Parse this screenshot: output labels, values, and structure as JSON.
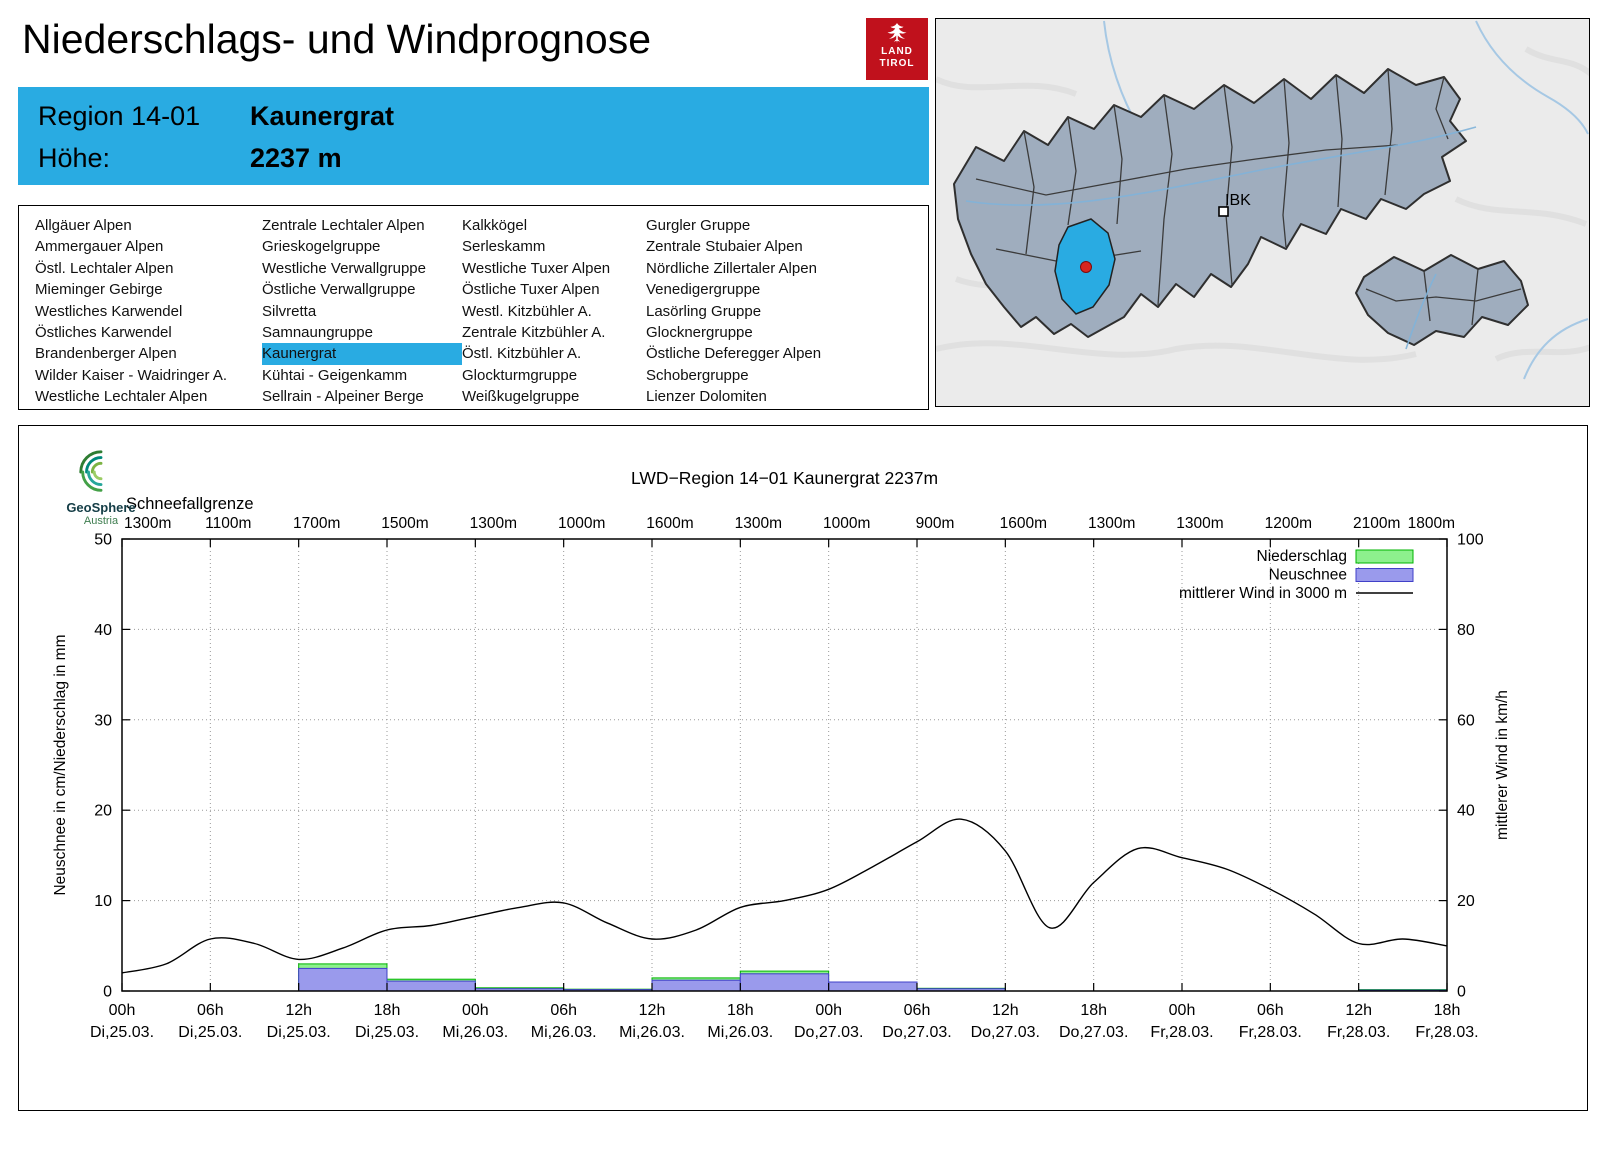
{
  "page": {
    "title": "Niederschlags- und Windprognose"
  },
  "logo": {
    "line1": "LAND",
    "line2": "TIROL"
  },
  "region_box": {
    "region_label": "Region 14-01",
    "region_value": "Kaunergrat",
    "altitude_label": "Höhe:",
    "altitude_value": "2237 m"
  },
  "region_list": {
    "highlighted": "Kaunergrat",
    "columns": [
      [
        "Allgäuer Alpen",
        "Ammergauer Alpen",
        "Östl. Lechtaler Alpen",
        "Mieminger Gebirge",
        "Westliches Karwendel",
        "Östliches Karwendel",
        "Brandenberger Alpen",
        "Wilder Kaiser - Waidringer A.",
        "Westliche Lechtaler Alpen"
      ],
      [
        "Zentrale Lechtaler Alpen",
        "Grieskogelgruppe",
        "Westliche Verwallgruppe",
        "Östliche Verwallgruppe",
        "Silvretta",
        "Samnaungruppe",
        "Kaunergrat",
        "Kühtai - Geigenkamm",
        "Sellrain - Alpeiner Berge"
      ],
      [
        "Kalkkögel",
        "Serleskamm",
        "Westliche Tuxer Alpen",
        "Östliche Tuxer Alpen",
        "Westl. Kitzbühler A.",
        "Zentrale Kitzbühler A.",
        "Östl. Kitzbühler A.",
        "Glockturmgruppe",
        "Weißkugelgruppe"
      ],
      [
        "Gurgler Gruppe",
        "Zentrale Stubaier Alpen",
        "Nördliche Zillertaler Alpen",
        "Venedigergruppe",
        "Lasörling Gruppe",
        "Glocknergruppe",
        "Östliche Deferegger Alpen",
        "Schobergruppe",
        "Lienzer Dolomiten"
      ]
    ]
  },
  "map": {
    "marker_label": "IBK",
    "highlight_color": "#29abe2"
  },
  "geosphere": {
    "line1": "GeoSphere",
    "line2": "Austria"
  },
  "chart_data": {
    "type": "bar",
    "title": "LWD−Region 14−01 Kaunergrat 2237m",
    "snowline": {
      "label": "Schneefallgrenze",
      "values_m": [
        "1300m",
        "1100m",
        "1700m",
        "1500m",
        "1300m",
        "1000m",
        "1600m",
        "1300m",
        "1000m",
        "900m",
        "1600m",
        "1300m",
        "1300m",
        "1200m",
        "2100m",
        "1800m"
      ]
    },
    "x_ticks": {
      "times": [
        "00h",
        "06h",
        "12h",
        "18h",
        "00h",
        "06h",
        "12h",
        "18h",
        "00h",
        "06h",
        "12h",
        "18h",
        "00h",
        "06h",
        "12h",
        "18h"
      ],
      "dates": [
        "Di,25.03.",
        "Di,25.03.",
        "Di,25.03.",
        "Di,25.03.",
        "Mi,26.03.",
        "Mi,26.03.",
        "Mi,26.03.",
        "Mi,26.03.",
        "Do,27.03.",
        "Do,27.03.",
        "Do,27.03.",
        "Do,27.03.",
        "Fr,28.03.",
        "Fr,28.03.",
        "Fr,28.03.",
        "Fr,28.03."
      ]
    },
    "y_left": {
      "label": "Neuschnee in cm/Niederschlag in mm",
      "ticks": [
        0,
        10,
        20,
        30,
        40,
        50
      ],
      "range": [
        0,
        50
      ]
    },
    "y_right": {
      "label": "mittlerer Wind in km/h",
      "ticks": [
        0,
        20,
        40,
        60,
        80,
        100
      ],
      "range": [
        0,
        100
      ]
    },
    "legend": [
      {
        "label": "Niederschlag",
        "type": "box",
        "fill": "#8df08d",
        "border": "#00b400"
      },
      {
        "label": "Neuschnee",
        "type": "box",
        "fill": "#9a9aec",
        "border": "#4040c8"
      },
      {
        "label": "mittlerer Wind in 3000 m",
        "type": "line"
      }
    ],
    "colors": {
      "niederschlag_fill": "#8df08d",
      "niederschlag_border": "#00b400",
      "neuschnee_fill": "#9a9aec",
      "neuschnee_border": "#4040c8",
      "wind_line": "#000000"
    },
    "series": {
      "niederschlag_mm": {
        "interval_h": 6,
        "values": [
          0,
          0,
          3.0,
          1.3,
          0.35,
          0.2,
          1.45,
          2.2,
          1.0,
          0.3,
          0,
          0,
          0,
          0,
          0.15
        ]
      },
      "neuschnee_cm": {
        "interval_h": 6,
        "values": [
          0,
          0,
          2.5,
          1.1,
          0.25,
          0.15,
          1.2,
          1.9,
          1.0,
          0.25,
          0,
          0,
          0,
          0,
          0.1
        ]
      },
      "wind_kmh_3000m": {
        "hours": [
          0,
          3,
          6,
          9,
          12,
          15,
          18,
          21,
          24,
          27,
          30,
          33,
          36,
          39,
          42,
          45,
          48,
          51,
          54,
          57,
          60,
          63,
          66,
          69,
          72,
          75,
          78,
          81,
          84,
          87,
          90
        ],
        "values": [
          4,
          6,
          11.5,
          10.5,
          7,
          9.5,
          13.5,
          14.5,
          16.5,
          18.5,
          19.5,
          15,
          11.5,
          13.5,
          18.5,
          20,
          22.5,
          27.5,
          33,
          38,
          31,
          14,
          24,
          31.5,
          29.5,
          27,
          22.5,
          17,
          10.5,
          11.5,
          10
        ]
      }
    }
  }
}
